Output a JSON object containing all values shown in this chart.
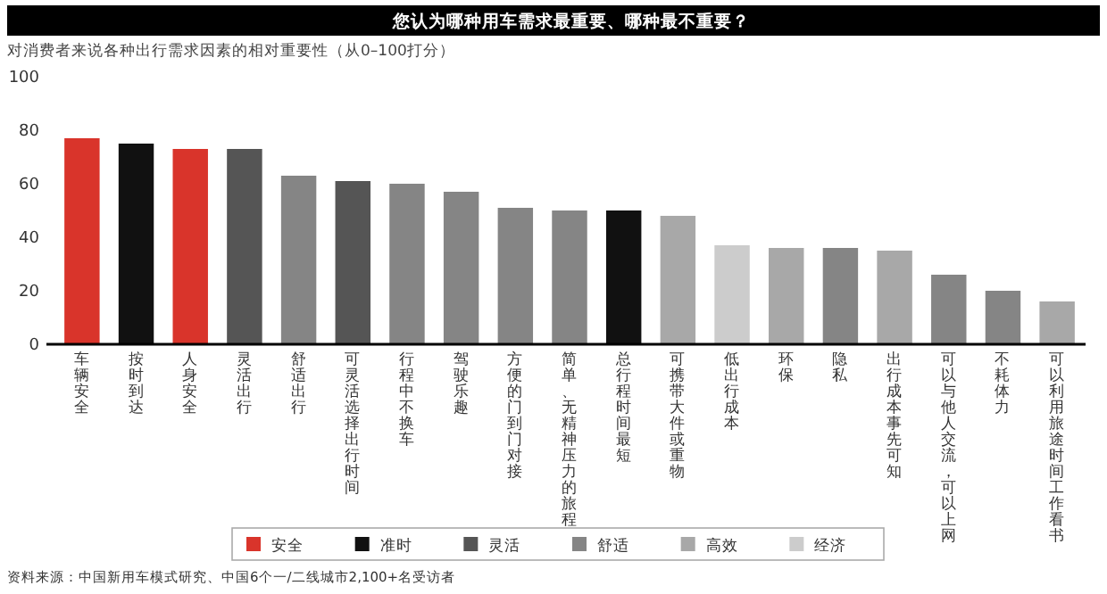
{
  "chart_data": {
    "type": "bar",
    "title": "您认为哪种用车需求最重要、哪种最不重要？",
    "subtitle": "对消费者来说各种出行需求因素的相对重要性（从0–100打分）",
    "categories": [
      "车辆安全",
      "按时到达",
      "人身安全",
      "灵活出行",
      "舒适出行",
      "可灵活选择出行时间",
      "行程中不换车",
      "驾驶乐趣",
      "方便的门到门对接",
      "简单、无精神压力的旅程",
      "总行程时间最短",
      "可携带大件或重物",
      "低出行成本",
      "环保",
      "隐私",
      "出行成本事先可知",
      "可以与他人交流，可以上网",
      "不耗体力",
      "可以利用旅途时间工作看书"
    ],
    "stacked": true,
    "series": [
      {
        "name": "安全",
        "color": "#d9342b",
        "values": [
          77,
          null,
          73,
          null,
          null,
          null,
          null,
          null,
          null,
          null,
          null,
          null,
          null,
          null,
          null,
          null,
          null,
          null,
          null
        ]
      },
      {
        "name": "准时",
        "color": "#111111",
        "values": [
          null,
          75,
          null,
          null,
          null,
          null,
          null,
          null,
          null,
          null,
          50,
          null,
          null,
          null,
          null,
          null,
          null,
          null,
          null
        ]
      },
      {
        "name": "灵活",
        "color": "#555555",
        "values": [
          null,
          null,
          null,
          73,
          null,
          61,
          null,
          null,
          null,
          null,
          null,
          null,
          null,
          null,
          null,
          null,
          null,
          null,
          null
        ]
      },
      {
        "name": "舒适",
        "color": "#858585",
        "values": [
          null,
          null,
          null,
          null,
          63,
          null,
          60,
          57,
          51,
          50,
          null,
          null,
          null,
          null,
          36,
          null,
          26,
          20,
          null
        ]
      },
      {
        "name": "高效",
        "color": "#a8a8a8",
        "values": [
          null,
          null,
          null,
          null,
          null,
          null,
          null,
          null,
          null,
          null,
          null,
          48,
          null,
          36,
          null,
          35,
          null,
          null,
          16
        ]
      },
      {
        "name": "经济",
        "color": "#cccccc",
        "values": [
          null,
          null,
          null,
          null,
          null,
          null,
          null,
          null,
          null,
          null,
          null,
          null,
          37,
          null,
          null,
          null,
          null,
          null,
          null
        ]
      }
    ],
    "ylim": [
      0,
      100
    ],
    "yticks": [
      0,
      20,
      40,
      60,
      80,
      100
    ],
    "grid": false,
    "legend": "bottom",
    "annotations": [
      "资料来源：中国新用车模式研究、中国6个一/二线城市2,100+名受访者"
    ]
  }
}
